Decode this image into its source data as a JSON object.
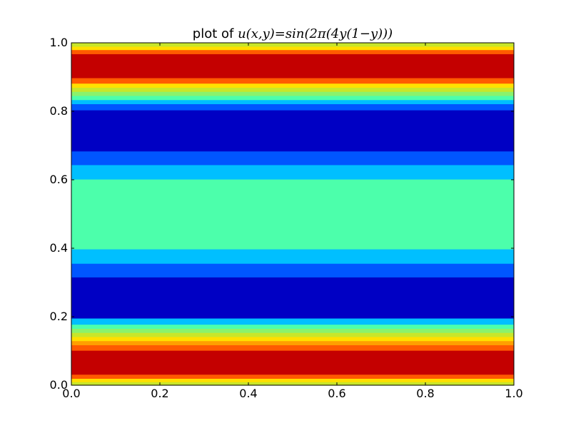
{
  "chart_data": {
    "type": "heatmap",
    "title": {
      "prefix": "plot of ",
      "formula": "u(x,y)=sin(2π(4y(1−y)))"
    },
    "xlabel": "",
    "ylabel": "",
    "xlim": [
      0.0,
      1.0
    ],
    "ylim": [
      0.0,
      1.0
    ],
    "x_ticks": [
      "0.0",
      "0.2",
      "0.4",
      "0.6",
      "0.8",
      "1.0"
    ],
    "y_ticks": [
      "0.0",
      "0.2",
      "0.4",
      "0.6",
      "0.8",
      "1.0"
    ],
    "colormap": "jet",
    "grid": false,
    "bands": [
      {
        "y0": 0.0,
        "y1": 0.01,
        "color": "#c8e62a"
      },
      {
        "y0": 0.01,
        "y1": 0.02,
        "color": "#ffdf00"
      },
      {
        "y0": 0.02,
        "y1": 0.032,
        "color": "#ff5a00"
      },
      {
        "y0": 0.032,
        "y1": 0.102,
        "color": "#c40000"
      },
      {
        "y0": 0.102,
        "y1": 0.118,
        "color": "#ff5a00"
      },
      {
        "y0": 0.118,
        "y1": 0.13,
        "color": "#ff9f00"
      },
      {
        "y0": 0.13,
        "y1": 0.142,
        "color": "#ffdf00"
      },
      {
        "y0": 0.142,
        "y1": 0.154,
        "color": "#c8e62a"
      },
      {
        "y0": 0.154,
        "y1": 0.166,
        "color": "#8af26c"
      },
      {
        "y0": 0.166,
        "y1": 0.178,
        "color": "#4cffab"
      },
      {
        "y0": 0.178,
        "y1": 0.196,
        "color": "#00bfff"
      },
      {
        "y0": 0.196,
        "y1": 0.316,
        "color": "#0000c4"
      },
      {
        "y0": 0.316,
        "y1": 0.356,
        "color": "#0056ff"
      },
      {
        "y0": 0.356,
        "y1": 0.398,
        "color": "#00bfff"
      },
      {
        "y0": 0.398,
        "y1": 0.602,
        "color": "#4cffab"
      },
      {
        "y0": 0.602,
        "y1": 0.644,
        "color": "#00bfff"
      },
      {
        "y0": 0.644,
        "y1": 0.684,
        "color": "#0056ff"
      },
      {
        "y0": 0.684,
        "y1": 0.804,
        "color": "#0000c4"
      },
      {
        "y0": 0.804,
        "y1": 0.822,
        "color": "#0056ff"
      },
      {
        "y0": 0.822,
        "y1": 0.834,
        "color": "#00bfff"
      },
      {
        "y0": 0.834,
        "y1": 0.846,
        "color": "#4cffab"
      },
      {
        "y0": 0.846,
        "y1": 0.858,
        "color": "#8af26c"
      },
      {
        "y0": 0.858,
        "y1": 0.87,
        "color": "#c8e62a"
      },
      {
        "y0": 0.87,
        "y1": 0.882,
        "color": "#ffdf00"
      },
      {
        "y0": 0.882,
        "y1": 0.898,
        "color": "#ff5a00"
      },
      {
        "y0": 0.898,
        "y1": 0.968,
        "color": "#c40000"
      },
      {
        "y0": 0.968,
        "y1": 0.98,
        "color": "#ff5a00"
      },
      {
        "y0": 0.98,
        "y1": 0.99,
        "color": "#ffdf00"
      },
      {
        "y0": 0.99,
        "y1": 1.0,
        "color": "#c8e62a"
      }
    ]
  }
}
